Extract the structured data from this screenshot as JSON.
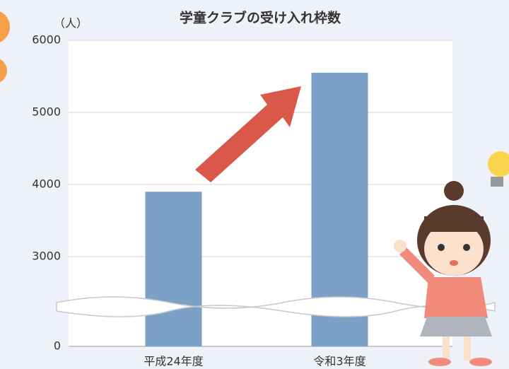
{
  "chart_data": {
    "type": "bar",
    "title": "学童クラブの受け入れ枠数",
    "y_unit": "（人）",
    "categories": [
      "平成24年度",
      "令和3年度"
    ],
    "values": [
      3900,
      5550
    ],
    "color": "#7ba1c9",
    "ylim": [
      0,
      6000
    ],
    "yticks": [
      0,
      3000,
      4000,
      5000,
      6000
    ],
    "axis_break": true,
    "grid": true
  }
}
